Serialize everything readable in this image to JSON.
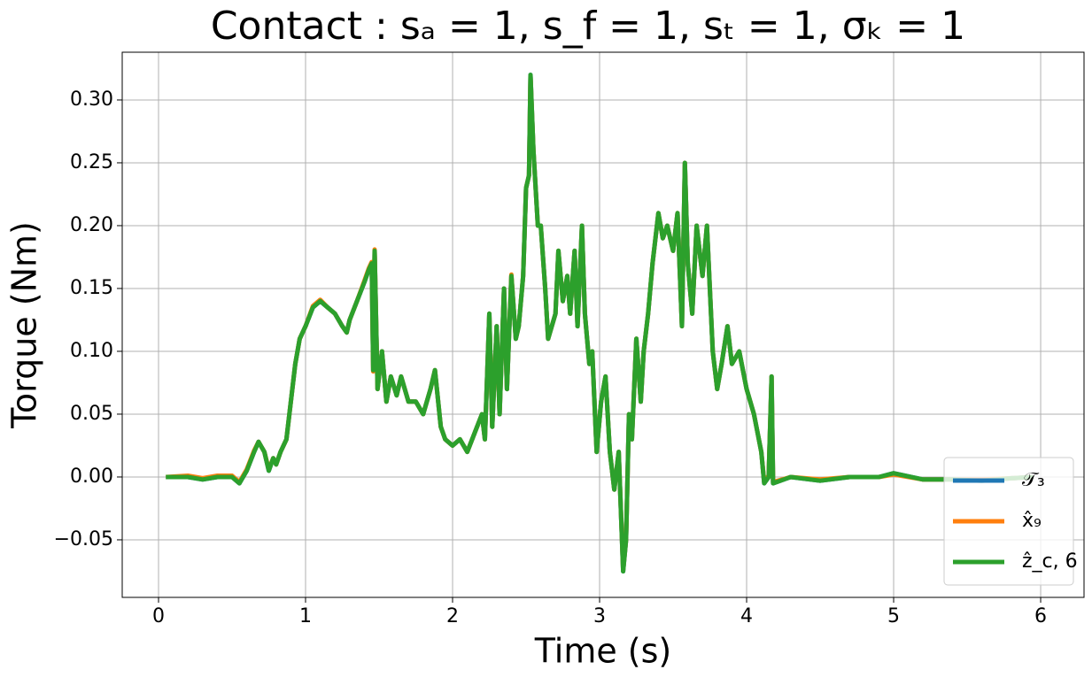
{
  "chart_data": {
    "type": "line",
    "title": "Contact : sₐ = 1, s_f = 1, sₜ = 1, σₖ = 1",
    "x_label": "Time (s)",
    "y_label": "Torque (Nm)",
    "x": [
      0.05,
      0.2,
      0.3,
      0.4,
      0.5,
      0.55,
      0.6,
      0.65,
      0.68,
      0.72,
      0.75,
      0.78,
      0.8,
      0.83,
      0.87,
      0.9,
      0.93,
      0.96,
      1.0,
      1.05,
      1.1,
      1.15,
      1.2,
      1.25,
      1.28,
      1.3,
      1.35,
      1.4,
      1.43,
      1.45,
      1.46,
      1.47,
      1.49,
      1.52,
      1.55,
      1.58,
      1.62,
      1.65,
      1.7,
      1.75,
      1.8,
      1.85,
      1.88,
      1.92,
      1.95,
      2.0,
      2.05,
      2.1,
      2.15,
      2.2,
      2.22,
      2.25,
      2.27,
      2.3,
      2.32,
      2.35,
      2.37,
      2.4,
      2.43,
      2.45,
      2.48,
      2.5,
      2.52,
      2.53,
      2.55,
      2.58,
      2.6,
      2.63,
      2.65,
      2.7,
      2.72,
      2.75,
      2.78,
      2.8,
      2.83,
      2.85,
      2.88,
      2.9,
      2.93,
      2.95,
      2.98,
      3.01,
      3.04,
      3.07,
      3.1,
      3.13,
      3.16,
      3.18,
      3.2,
      3.22,
      3.25,
      3.28,
      3.3,
      3.33,
      3.36,
      3.4,
      3.43,
      3.46,
      3.5,
      3.53,
      3.56,
      3.58,
      3.6,
      3.63,
      3.66,
      3.7,
      3.73,
      3.77,
      3.8,
      3.83,
      3.87,
      3.9,
      3.95,
      4.0,
      4.05,
      4.1,
      4.12,
      4.15,
      4.17,
      4.18,
      4.3,
      4.5,
      4.7,
      4.9,
      5.0,
      5.2,
      5.4,
      5.6,
      5.8,
      5.95
    ],
    "series": [
      {
        "name": "𝒯₃",
        "color": "#1f77b4",
        "values": [
          0.0,
          0.0,
          -0.002,
          0.0,
          0.0,
          -0.005,
          0.005,
          0.02,
          0.028,
          0.02,
          0.005,
          0.015,
          0.01,
          0.02,
          0.03,
          0.06,
          0.09,
          0.11,
          0.12,
          0.135,
          0.14,
          0.135,
          0.13,
          0.12,
          0.115,
          0.125,
          0.14,
          0.155,
          0.165,
          0.17,
          0.085,
          0.18,
          0.07,
          0.1,
          0.06,
          0.08,
          0.065,
          0.08,
          0.06,
          0.06,
          0.05,
          0.07,
          0.085,
          0.04,
          0.03,
          0.025,
          0.03,
          0.02,
          0.035,
          0.05,
          0.03,
          0.13,
          0.04,
          0.12,
          0.05,
          0.15,
          0.07,
          0.16,
          0.11,
          0.12,
          0.16,
          0.23,
          0.24,
          0.32,
          0.26,
          0.2,
          0.2,
          0.15,
          0.11,
          0.13,
          0.18,
          0.14,
          0.16,
          0.13,
          0.18,
          0.12,
          0.2,
          0.13,
          0.09,
          0.1,
          0.02,
          0.06,
          0.08,
          0.02,
          -0.01,
          0.02,
          -0.075,
          -0.05,
          0.05,
          0.03,
          0.11,
          0.06,
          0.1,
          0.13,
          0.17,
          0.21,
          0.19,
          0.2,
          0.18,
          0.21,
          0.12,
          0.25,
          0.17,
          0.13,
          0.2,
          0.16,
          0.2,
          0.1,
          0.07,
          0.09,
          0.12,
          0.09,
          0.1,
          0.07,
          0.05,
          0.02,
          -0.005,
          0.0,
          0.08,
          -0.005,
          0.0,
          -0.003,
          0.0,
          0.0,
          0.003,
          -0.002,
          -0.002,
          -0.003,
          -0.001,
          0.0
        ]
      },
      {
        "name": "x̂₉",
        "color": "#ff7f0e",
        "values": [
          0.0,
          0.001,
          -0.001,
          0.001,
          0.001,
          -0.004,
          0.006,
          0.021,
          0.028,
          0.02,
          0.006,
          0.015,
          0.01,
          0.02,
          0.03,
          0.06,
          0.09,
          0.11,
          0.12,
          0.136,
          0.141,
          0.135,
          0.13,
          0.12,
          0.115,
          0.125,
          0.14,
          0.156,
          0.166,
          0.171,
          0.084,
          0.181,
          0.07,
          0.1,
          0.06,
          0.08,
          0.065,
          0.08,
          0.06,
          0.06,
          0.05,
          0.07,
          0.085,
          0.04,
          0.03,
          0.025,
          0.03,
          0.02,
          0.035,
          0.05,
          0.03,
          0.13,
          0.04,
          0.12,
          0.05,
          0.15,
          0.07,
          0.161,
          0.11,
          0.12,
          0.16,
          0.23,
          0.24,
          0.319,
          0.26,
          0.2,
          0.2,
          0.15,
          0.11,
          0.13,
          0.18,
          0.14,
          0.16,
          0.13,
          0.18,
          0.12,
          0.2,
          0.13,
          0.09,
          0.1,
          0.02,
          0.06,
          0.08,
          0.02,
          -0.01,
          0.02,
          -0.074,
          -0.05,
          0.05,
          0.03,
          0.11,
          0.06,
          0.1,
          0.13,
          0.17,
          0.21,
          0.19,
          0.2,
          0.18,
          0.21,
          0.12,
          0.25,
          0.17,
          0.13,
          0.2,
          0.16,
          0.2,
          0.1,
          0.07,
          0.09,
          0.12,
          0.09,
          0.1,
          0.07,
          0.05,
          0.02,
          -0.004,
          0.001,
          0.08,
          -0.004,
          0.0,
          -0.002,
          0.0,
          0.0,
          0.002,
          -0.002,
          -0.002,
          -0.002,
          -0.001,
          0.0
        ]
      },
      {
        "name": "ẑ_c, 6",
        "color": "#2ca02c",
        "values": [
          0.0,
          0.0,
          -0.002,
          0.0,
          0.0,
          -0.005,
          0.005,
          0.02,
          0.028,
          0.02,
          0.005,
          0.015,
          0.01,
          0.02,
          0.03,
          0.06,
          0.09,
          0.11,
          0.12,
          0.135,
          0.14,
          0.135,
          0.13,
          0.12,
          0.115,
          0.125,
          0.14,
          0.155,
          0.165,
          0.17,
          0.085,
          0.18,
          0.07,
          0.1,
          0.06,
          0.08,
          0.065,
          0.08,
          0.06,
          0.06,
          0.05,
          0.07,
          0.085,
          0.04,
          0.03,
          0.025,
          0.03,
          0.02,
          0.035,
          0.05,
          0.03,
          0.13,
          0.04,
          0.12,
          0.05,
          0.15,
          0.07,
          0.16,
          0.11,
          0.12,
          0.16,
          0.23,
          0.24,
          0.32,
          0.26,
          0.2,
          0.2,
          0.15,
          0.11,
          0.13,
          0.18,
          0.14,
          0.16,
          0.13,
          0.18,
          0.12,
          0.2,
          0.13,
          0.09,
          0.1,
          0.02,
          0.06,
          0.08,
          0.02,
          -0.01,
          0.02,
          -0.075,
          -0.05,
          0.05,
          0.03,
          0.11,
          0.06,
          0.1,
          0.13,
          0.17,
          0.21,
          0.19,
          0.2,
          0.18,
          0.21,
          0.12,
          0.25,
          0.17,
          0.13,
          0.2,
          0.16,
          0.2,
          0.1,
          0.07,
          0.09,
          0.12,
          0.09,
          0.1,
          0.07,
          0.05,
          0.02,
          -0.005,
          0.0,
          0.08,
          -0.005,
          0.0,
          -0.003,
          0.0,
          0.0,
          0.003,
          -0.002,
          -0.002,
          -0.003,
          -0.001,
          0.0
        ]
      }
    ],
    "xlim": [
      -0.247,
      6.295
    ],
    "ylim": [
      -0.0958,
      0.338
    ],
    "xticks": [
      0,
      1,
      2,
      3,
      4,
      5,
      6
    ],
    "yticks": [
      {
        "value": -0.05,
        "label": "−0.05"
      },
      {
        "value": 0,
        "label": "0.00"
      },
      {
        "value": 0.05,
        "label": "0.05"
      },
      {
        "value": 0.1,
        "label": "0.10"
      },
      {
        "value": 0.15,
        "label": "0.15"
      },
      {
        "value": 0.2,
        "label": "0.20"
      },
      {
        "value": 0.25,
        "label": "0.25"
      },
      {
        "value": 0.3,
        "label": "0.30"
      }
    ],
    "grid": true,
    "legend": "lower right"
  }
}
